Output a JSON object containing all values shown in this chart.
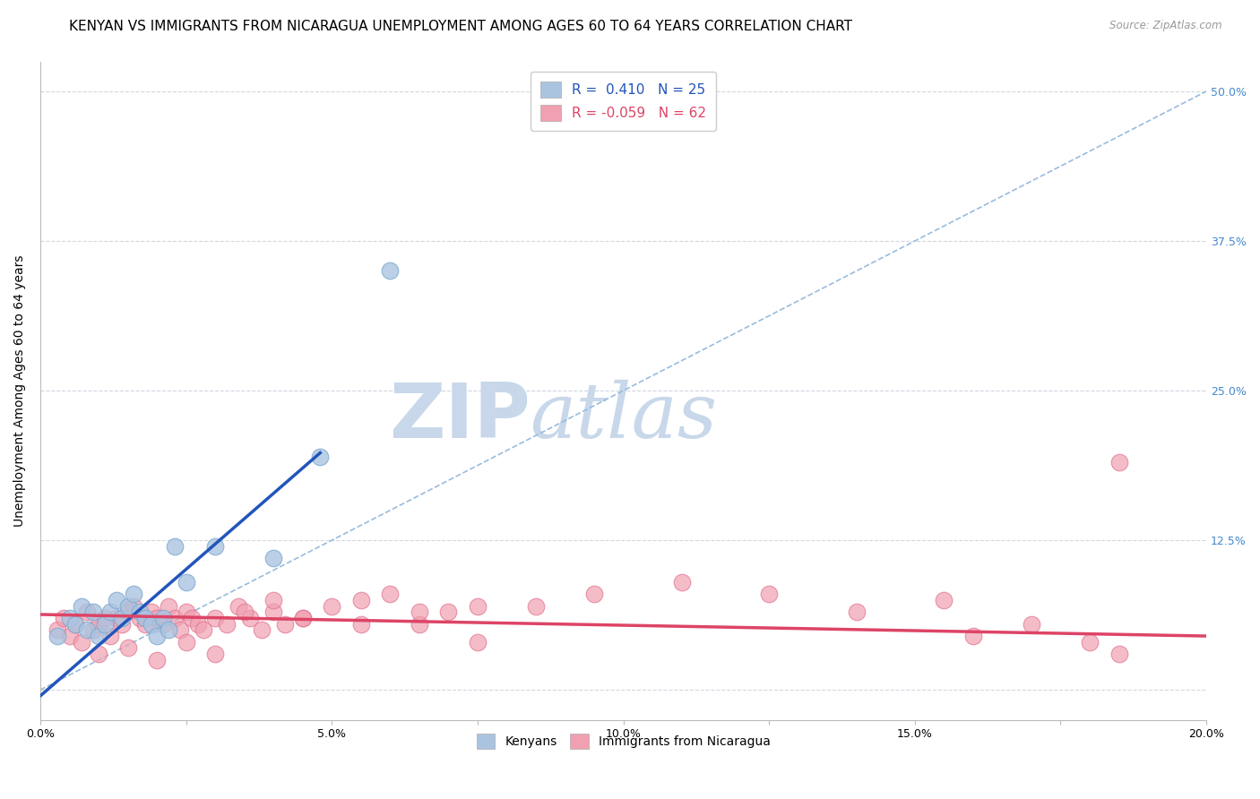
{
  "title": "KENYAN VS IMMIGRANTS FROM NICARAGUA UNEMPLOYMENT AMONG AGES 60 TO 64 YEARS CORRELATION CHART",
  "source": "Source: ZipAtlas.com",
  "xlabel": "",
  "ylabel": "Unemployment Among Ages 60 to 64 years",
  "xlim": [
    0.0,
    0.2
  ],
  "ylim": [
    -0.025,
    0.525
  ],
  "right_yticks": [
    0.0,
    0.125,
    0.25,
    0.375,
    0.5
  ],
  "right_yticklabels": [
    "",
    "12.5%",
    "25.0%",
    "37.5%",
    "50.0%"
  ],
  "xtick_labels": [
    "0.0%",
    "",
    "5.0%",
    "",
    "10.0%",
    "",
    "15.0%",
    "",
    "20.0%"
  ],
  "xtick_values": [
    0.0,
    0.025,
    0.05,
    0.075,
    0.1,
    0.125,
    0.15,
    0.175,
    0.2
  ],
  "background_color": "#ffffff",
  "watermark_zip": "ZIP",
  "watermark_atlas": "atlas",
  "watermark_color": "#c8d8ea",
  "kenya_color": "#aac4e0",
  "kenya_edge_color": "#7ba8d0",
  "nicaragua_color": "#f0a0b0",
  "nicaragua_edge_color": "#e07090",
  "kenya_line_color": "#2255bb",
  "nicaragua_line_color": "#dd4466",
  "dashed_line_color": "#99bbdd",
  "legend_kenya_label": "R =  0.410   N = 25",
  "legend_nicaragua_label": "R = -0.059   N = 62",
  "legend_bottom_kenya": "Kenyans",
  "legend_bottom_nicaragua": "Immigrants from Nicaragua",
  "kenya_scatter_x": [
    0.003,
    0.005,
    0.006,
    0.007,
    0.008,
    0.009,
    0.01,
    0.011,
    0.012,
    0.013,
    0.014,
    0.015,
    0.016,
    0.017,
    0.018,
    0.019,
    0.02,
    0.021,
    0.022,
    0.023,
    0.025,
    0.03,
    0.04,
    0.048,
    0.06
  ],
  "kenya_scatter_y": [
    0.045,
    0.06,
    0.055,
    0.07,
    0.05,
    0.065,
    0.045,
    0.055,
    0.065,
    0.075,
    0.06,
    0.07,
    0.08,
    0.065,
    0.06,
    0.055,
    0.045,
    0.06,
    0.05,
    0.12,
    0.09,
    0.12,
    0.11,
    0.195,
    0.35
  ],
  "kenya_line_x0": 0.0,
  "kenya_line_y0": -0.005,
  "kenya_line_x1": 0.048,
  "kenya_line_y1": 0.198,
  "nicaragua_scatter_x": [
    0.003,
    0.004,
    0.005,
    0.006,
    0.007,
    0.008,
    0.009,
    0.01,
    0.011,
    0.012,
    0.013,
    0.014,
    0.015,
    0.016,
    0.017,
    0.018,
    0.019,
    0.02,
    0.021,
    0.022,
    0.023,
    0.024,
    0.025,
    0.026,
    0.027,
    0.028,
    0.03,
    0.032,
    0.034,
    0.036,
    0.038,
    0.04,
    0.042,
    0.045,
    0.05,
    0.055,
    0.06,
    0.065,
    0.07,
    0.075,
    0.01,
    0.015,
    0.02,
    0.025,
    0.03,
    0.035,
    0.04,
    0.045,
    0.055,
    0.065,
    0.075,
    0.085,
    0.095,
    0.11,
    0.125,
    0.14,
    0.155,
    0.17,
    0.185,
    0.185,
    0.16,
    0.18
  ],
  "nicaragua_scatter_y": [
    0.05,
    0.06,
    0.045,
    0.055,
    0.04,
    0.065,
    0.05,
    0.055,
    0.06,
    0.045,
    0.06,
    0.055,
    0.065,
    0.07,
    0.06,
    0.055,
    0.065,
    0.06,
    0.055,
    0.07,
    0.06,
    0.05,
    0.065,
    0.06,
    0.055,
    0.05,
    0.06,
    0.055,
    0.07,
    0.06,
    0.05,
    0.065,
    0.055,
    0.06,
    0.07,
    0.075,
    0.08,
    0.055,
    0.065,
    0.07,
    0.03,
    0.035,
    0.025,
    0.04,
    0.03,
    0.065,
    0.075,
    0.06,
    0.055,
    0.065,
    0.04,
    0.07,
    0.08,
    0.09,
    0.08,
    0.065,
    0.075,
    0.055,
    0.19,
    0.03,
    0.045,
    0.04
  ],
  "nicaragua_line_x0": 0.0,
  "nicaragua_line_y0": 0.063,
  "nicaragua_line_x1": 0.2,
  "nicaragua_line_y1": 0.045,
  "dashed_line_x0": 0.0,
  "dashed_line_y0": 0.0,
  "dashed_line_x1": 0.2,
  "dashed_line_y1": 0.5,
  "grid_color": "#d0d8e0",
  "title_fontsize": 11,
  "axis_label_fontsize": 10,
  "tick_fontsize": 9
}
